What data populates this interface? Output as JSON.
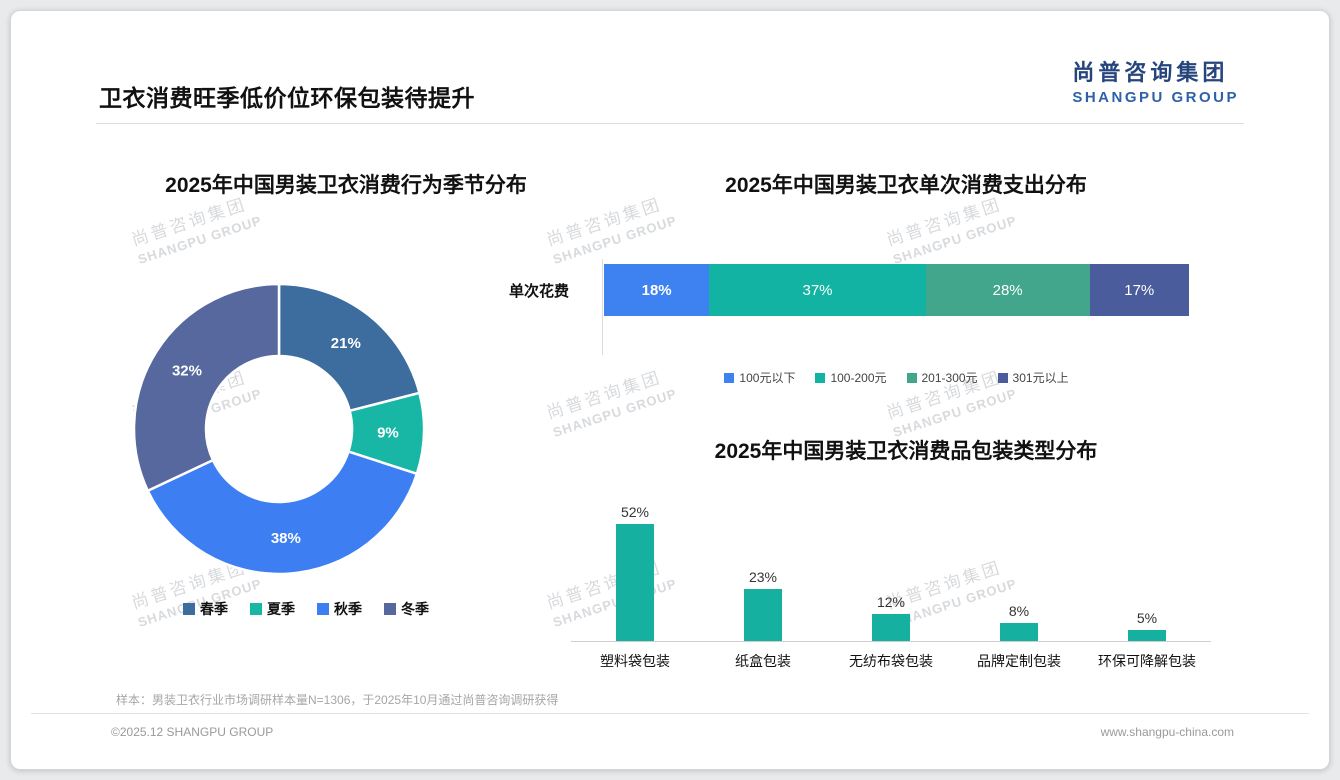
{
  "page": {
    "title": "卫衣消费旺季低价位环保包装待提升",
    "logo": {
      "cn": "尚普咨询集团",
      "en": "SHANGPU GROUP"
    },
    "watermark": {
      "cn": "尚普咨询集团",
      "en": "SHANGPU GROUP"
    },
    "footnote": "样本：男装卫衣行业市场调研样本量N=1306，于2025年10月通过尚普咨询调研获得",
    "footer_left": "©2025.12 SHANGPU GROUP",
    "footer_right": "www.shangpu-china.com"
  },
  "chart_data": [
    {
      "type": "pie",
      "subtype": "donut",
      "title": "2025年中国男装卫衣消费行为季节分布",
      "categories": [
        "春季",
        "夏季",
        "秋季",
        "冬季"
      ],
      "values": [
        21,
        9,
        38,
        32
      ],
      "labels": [
        "21%",
        "9%",
        "38%",
        "32%"
      ],
      "colors": [
        "#3d6d9e",
        "#18b7a5",
        "#3d7ef2",
        "#57689e"
      ],
      "legend_position": "bottom"
    },
    {
      "type": "bar",
      "subtype": "stacked-horizontal",
      "title": "2025年中国男装卫衣单次消费支出分布",
      "row_label": "单次花费",
      "categories": [
        "100元以下",
        "100-200元",
        "201-300元",
        "301元以上"
      ],
      "values": [
        18,
        37,
        28,
        17
      ],
      "labels": [
        "18%",
        "37%",
        "28%",
        "17%"
      ],
      "colors": [
        "#3d82f0",
        "#12b3a2",
        "#42a68c",
        "#4a5c9b"
      ],
      "legend_position": "bottom"
    },
    {
      "type": "bar",
      "title": "2025年中国男装卫衣消费品包装类型分布",
      "categories": [
        "塑料袋包装",
        "纸盒包装",
        "无纺布袋包装",
        "品牌定制包装",
        "环保可降解包装"
      ],
      "values": [
        52,
        23,
        12,
        8,
        5
      ],
      "labels": [
        "52%",
        "23%",
        "12%",
        "8%",
        "5%"
      ],
      "color": "#16b0a1",
      "ylim": [
        0,
        60
      ],
      "grid": false
    }
  ]
}
